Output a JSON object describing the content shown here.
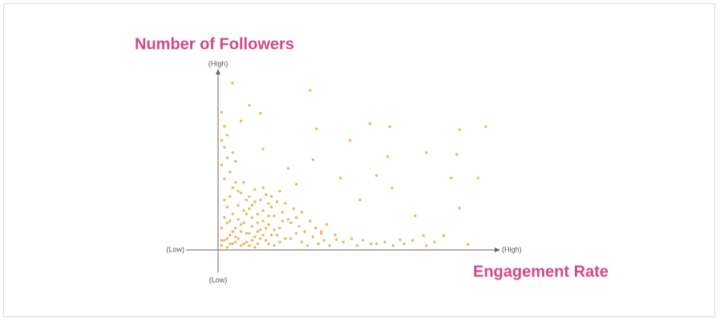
{
  "chart_data": {
    "type": "scatter",
    "title": "Number of Followers",
    "x_label": "Engagement Rate",
    "y_high_label": "(High)",
    "y_low_label": "(Low)",
    "x_low_label": "(Low)",
    "x_high_label": "(High)",
    "color": "#f0b560",
    "xlim": [
      0,
      100
    ],
    "ylim": [
      0,
      100
    ],
    "x": [
      4.9,
      33,
      54.6,
      61.8,
      87,
      96.5,
      35.3,
      47.4,
      75,
      61,
      86,
      34,
      57,
      44,
      84,
      93.7,
      62.6,
      51,
      87,
      71,
      81.3,
      90,
      11,
      15,
      8,
      16,
      25,
      28,
      37,
      42.5,
      57,
      65.5,
      74,
      1,
      2,
      3,
      4,
      5,
      6,
      7,
      8,
      9,
      10,
      11,
      12,
      13,
      14,
      15,
      16,
      17,
      18,
      19,
      20,
      1,
      2,
      3,
      4,
      5,
      2,
      1,
      3,
      2,
      1,
      4,
      6,
      8,
      10,
      12,
      14,
      16,
      18,
      20,
      22,
      24,
      26,
      28,
      30,
      32,
      34,
      36,
      38,
      40,
      45,
      48,
      50,
      52,
      55,
      60,
      63,
      67,
      70,
      75,
      78,
      3,
      5,
      7,
      9,
      11,
      13,
      15,
      17,
      19,
      21,
      23,
      25,
      27,
      29,
      31,
      33,
      35,
      37,
      39,
      42,
      1,
      2,
      4,
      6,
      7,
      8,
      9,
      10,
      11,
      12,
      13,
      14,
      15,
      16,
      17,
      18,
      19,
      21,
      22,
      23,
      4,
      6,
      8,
      10,
      12,
      14,
      16,
      18,
      20,
      22,
      24,
      26,
      28,
      30,
      3,
      5,
      7,
      9,
      11,
      13,
      2,
      3,
      1,
      5,
      6
    ],
    "values": [
      94.6,
      90.5,
      71.6,
      69.8,
      68,
      69.8,
      68.5,
      62,
      55,
      52.7,
      54,
      51,
      42,
      40.5,
      40.5,
      40.5,
      34.7,
      28,
      23.4,
      19,
      7.7,
      2.7,
      82,
      77.5,
      73,
      57,
      46,
      37,
      10,
      5.4,
      3,
      5.4,
      7.7,
      2,
      5,
      1,
      8,
      3,
      12,
      6,
      2,
      15,
      4,
      9,
      18,
      7,
      3,
      11,
      22,
      5,
      14,
      8,
      2,
      12,
      18,
      24,
      30,
      35,
      40,
      48,
      52,
      58,
      62,
      44,
      38,
      32,
      28,
      25,
      20,
      16,
      26,
      19,
      12,
      6,
      15,
      9,
      4,
      2,
      7,
      3,
      5,
      2,
      4,
      6,
      2,
      5,
      3,
      4,
      2,
      3,
      5,
      2,
      4,
      15,
      20,
      25,
      22,
      30,
      34,
      28,
      31,
      24,
      27,
      21,
      17,
      23,
      13,
      10,
      16,
      12,
      9,
      14,
      8,
      5,
      28,
      16,
      4,
      33,
      10,
      38,
      20,
      2,
      13,
      27,
      10,
      6,
      35,
      12,
      3,
      30,
      8,
      33,
      16,
      3,
      7,
      14,
      9,
      5,
      15,
      8,
      19,
      11,
      4,
      26,
      6,
      18,
      21,
      6,
      10,
      17,
      3,
      23,
      1,
      70,
      65,
      78,
      55,
      50
    ]
  }
}
